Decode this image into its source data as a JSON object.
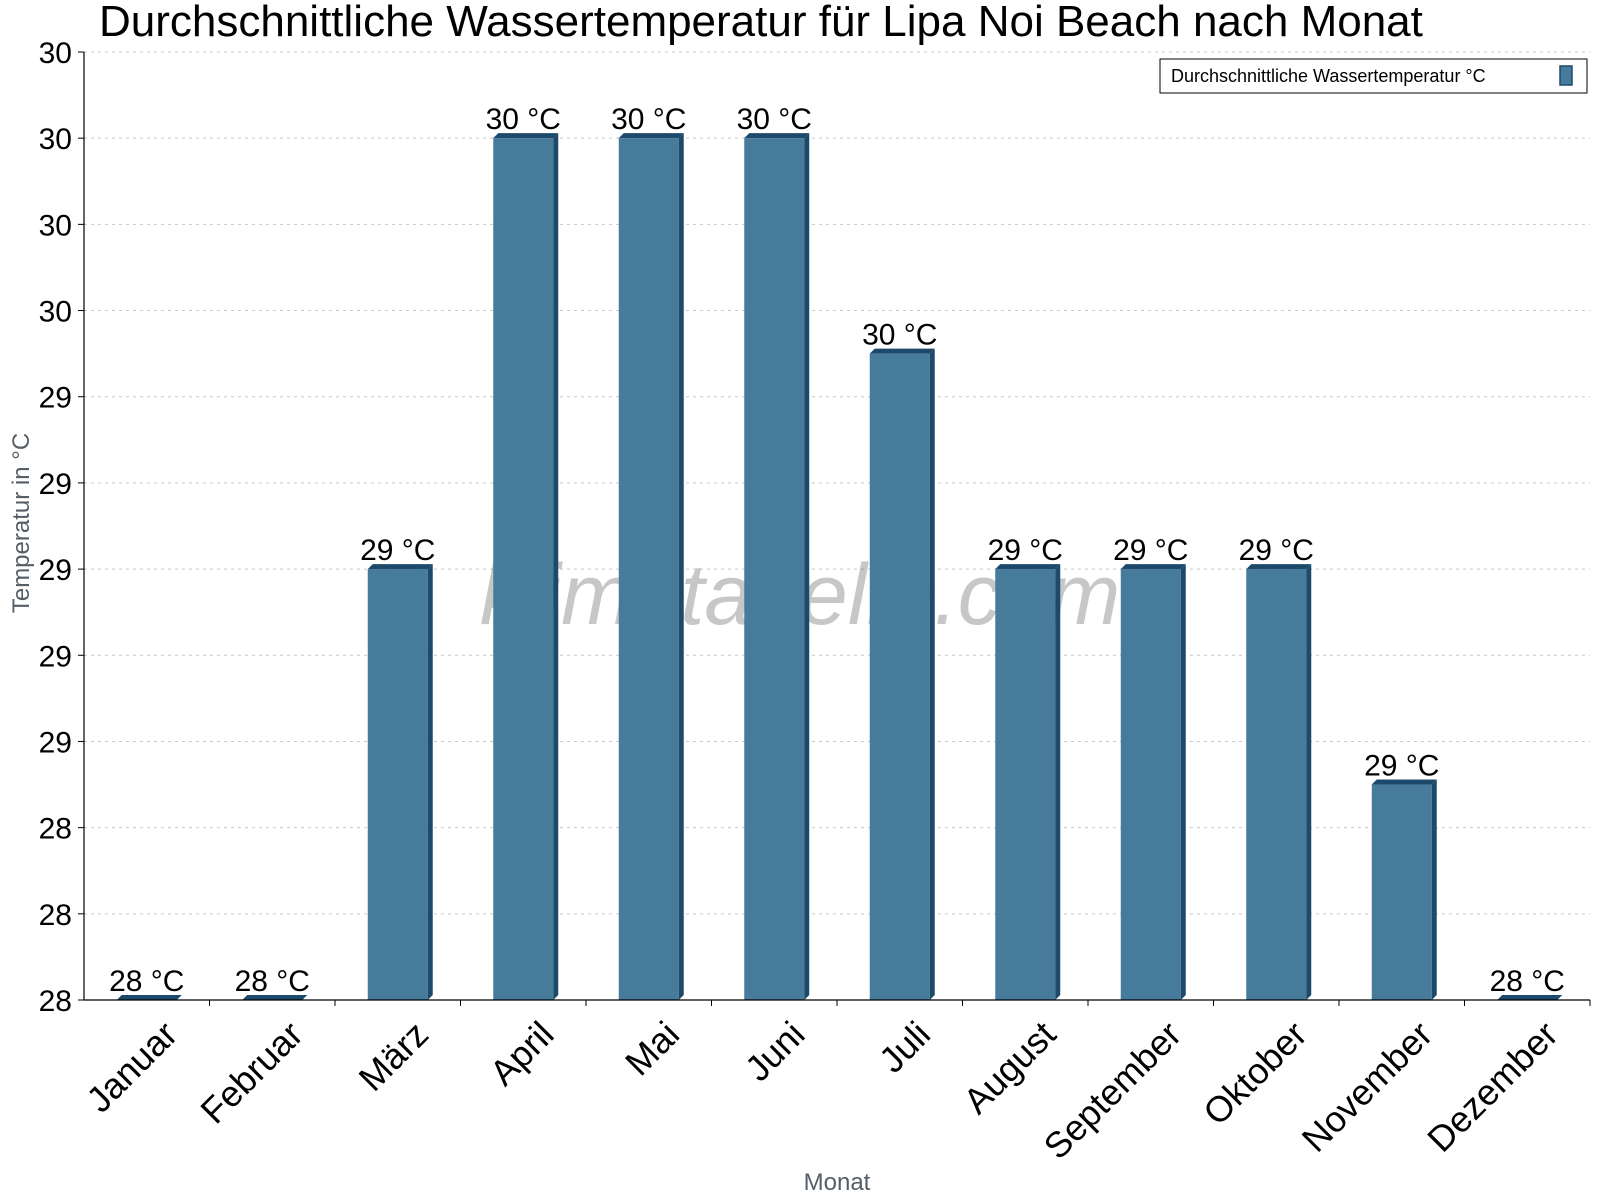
{
  "chart_data": {
    "type": "bar",
    "title": "Durchschnittliche Wassertemperatur für Lipa Noi Beach nach Monat",
    "xlabel": "Monat",
    "ylabel": "Temperatur in °C",
    "categories": [
      "Januar",
      "Februar",
      "März",
      "April",
      "Mai",
      "Juni",
      "Juli",
      "August",
      "September",
      "Oktober",
      "November",
      "Dezember"
    ],
    "series": [
      {
        "name": "Durchschnittliche Wassertemperatur °C",
        "values": [
          28.0,
          28.0,
          29.0,
          30.0,
          30.0,
          30.0,
          29.5,
          29.0,
          29.0,
          29.0,
          28.5,
          28.0
        ],
        "labels": [
          "28 °C",
          "28 °C",
          "29 °C",
          "30 °C",
          "30 °C",
          "30 °C",
          "30 °C",
          "29 °C",
          "29 °C",
          "29 °C",
          "29 °C",
          "28 °C"
        ]
      }
    ],
    "ylim": [
      28.0,
      30.2
    ],
    "yticks": [
      {
        "value": 28.0,
        "label": "28"
      },
      {
        "value": 28.2,
        "label": "28"
      },
      {
        "value": 28.4,
        "label": "28"
      },
      {
        "value": 28.6,
        "label": "29"
      },
      {
        "value": 28.8,
        "label": "29"
      },
      {
        "value": 29.0,
        "label": "29"
      },
      {
        "value": 29.2,
        "label": "29"
      },
      {
        "value": 29.4,
        "label": "29"
      },
      {
        "value": 29.6,
        "label": "30"
      },
      {
        "value": 29.8,
        "label": "30"
      },
      {
        "value": 30.0,
        "label": "30"
      },
      {
        "value": 30.2,
        "label": "30"
      }
    ],
    "grid": true,
    "legend_position": "top-right",
    "colors": {
      "bar": "#467b9c",
      "bar_side": "#1d4a6a",
      "grid": "#c8c8c8"
    },
    "watermark": "klimatabelle.com"
  }
}
